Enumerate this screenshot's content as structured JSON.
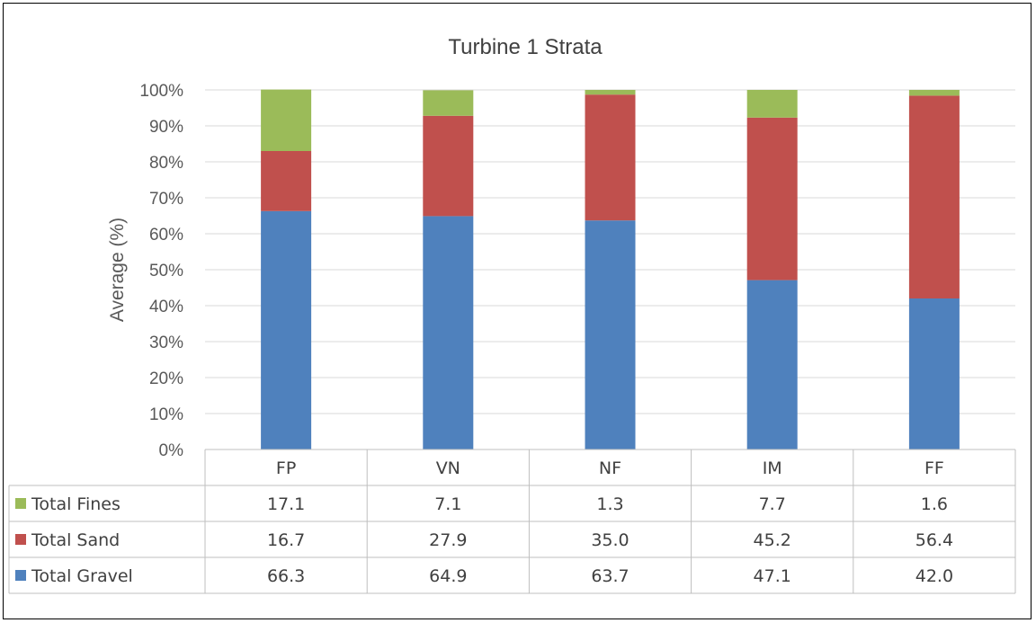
{
  "chart_data": {
    "type": "bar",
    "stacked": true,
    "title": "Turbine 1 Strata",
    "ylabel": "Average (%)",
    "xlabel": "",
    "ylim": [
      0,
      100
    ],
    "y_ticks": [
      "0%",
      "10%",
      "20%",
      "30%",
      "40%",
      "50%",
      "60%",
      "70%",
      "80%",
      "90%",
      "100%"
    ],
    "grid": true,
    "legend": "data-table",
    "categories": [
      "FP",
      "VN",
      "NF",
      "IM",
      "FF"
    ],
    "series": [
      {
        "name": "Total Gravel",
        "color": "#4f81bd",
        "values": [
          66.3,
          64.9,
          63.7,
          47.1,
          42.0
        ],
        "labels": [
          "66.3",
          "64.9",
          "63.7",
          "47.1",
          "42.0"
        ]
      },
      {
        "name": "Total Sand",
        "color": "#c0504d",
        "values": [
          16.7,
          27.9,
          35.0,
          45.2,
          56.4
        ],
        "labels": [
          "16.7",
          "27.9",
          "35.0",
          "45.2",
          "56.4"
        ]
      },
      {
        "name": "Total Fines",
        "color": "#9bbb59",
        "values": [
          17.1,
          7.1,
          1.3,
          7.7,
          1.6
        ],
        "labels": [
          "17.1",
          "7.1",
          "1.3",
          "7.7",
          "1.6"
        ]
      }
    ],
    "table_row_order": [
      "Total Fines",
      "Total Sand",
      "Total Gravel"
    ]
  }
}
